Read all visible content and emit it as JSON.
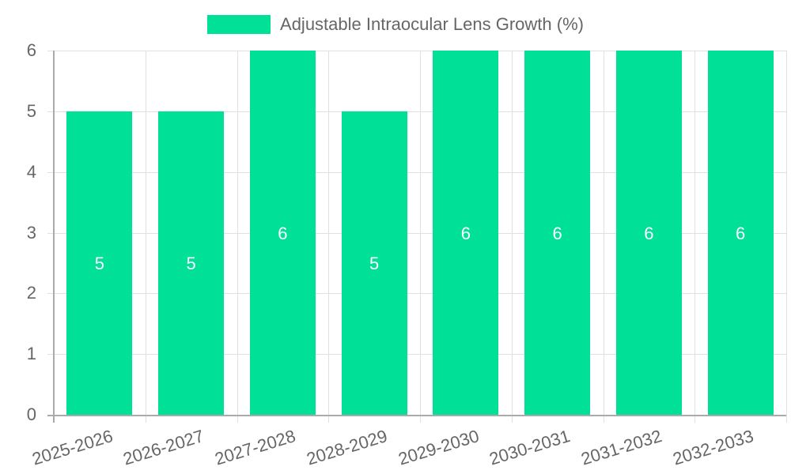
{
  "chart_data": {
    "type": "bar",
    "title": "",
    "legend": [
      "Adjustable Intraocular Lens Growth (%)"
    ],
    "legend_position": "top",
    "categories": [
      "2025-2026",
      "2026-2027",
      "2027-2028",
      "2028-2029",
      "2029-2030",
      "2030-2031",
      "2031-2032",
      "2032-2033"
    ],
    "series": [
      {
        "name": "Adjustable Intraocular Lens Growth (%)",
        "values": [
          5,
          5,
          6,
          5,
          6,
          6,
          6,
          6
        ],
        "color": "#00e096"
      }
    ],
    "xlabel": "",
    "ylabel": "",
    "ylim": [
      0,
      6
    ],
    "yticks": [
      0,
      1,
      2,
      3,
      4,
      5,
      6
    ],
    "grid": true,
    "data_labels": true
  },
  "legend": {
    "label": "Adjustable Intraocular Lens Growth (%)",
    "color": "#00e096"
  }
}
